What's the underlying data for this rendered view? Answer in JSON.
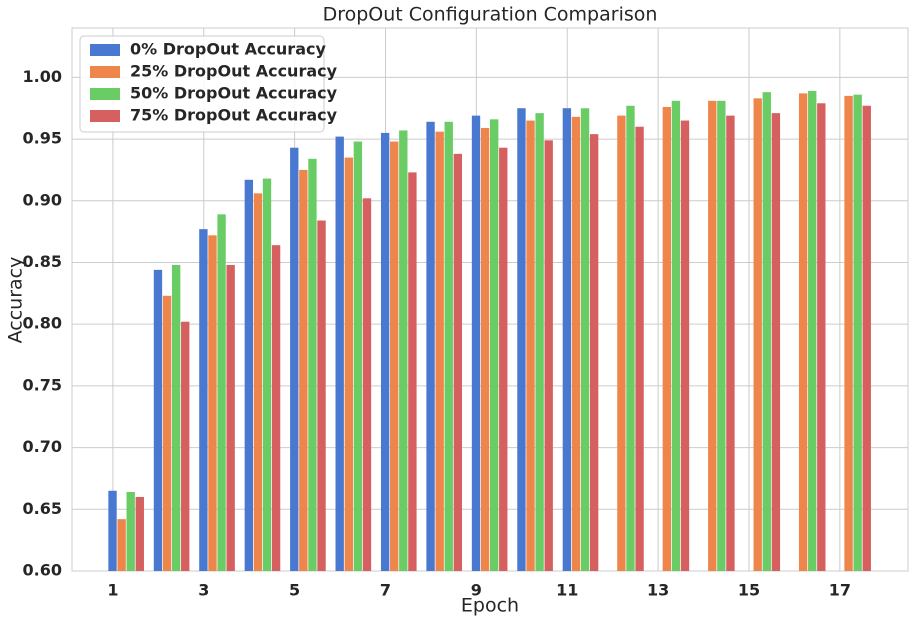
{
  "chart_data": {
    "type": "bar",
    "title": "DropOut Configuration Comparison",
    "x_label": "Epoch",
    "y_label": "Accuracy",
    "x": [
      1,
      2,
      3,
      4,
      5,
      6,
      7,
      8,
      9,
      10,
      11,
      12,
      13,
      14,
      15,
      16,
      17
    ],
    "series": [
      {
        "name": "0% DropOut Accuracy",
        "color": "#4878d0",
        "values": [
          0.665,
          0.844,
          0.877,
          0.917,
          0.943,
          0.952,
          0.955,
          0.964,
          0.969,
          0.975,
          0.975,
          null,
          null,
          null,
          null,
          null,
          null
        ]
      },
      {
        "name": "25% DropOut Accuracy",
        "color": "#ee854a",
        "values": [
          0.642,
          0.823,
          0.872,
          0.906,
          0.925,
          0.935,
          0.948,
          0.956,
          0.959,
          0.965,
          0.968,
          0.969,
          0.976,
          0.981,
          0.983,
          0.987,
          0.985
        ]
      },
      {
        "name": "50% DropOut Accuracy",
        "color": "#6acc64",
        "values": [
          0.664,
          0.848,
          0.889,
          0.918,
          0.934,
          0.948,
          0.957,
          0.964,
          0.966,
          0.971,
          0.975,
          0.977,
          0.981,
          0.981,
          0.988,
          0.989,
          0.986
        ]
      },
      {
        "name": "75% DropOut Accuracy",
        "color": "#d65f5f",
        "values": [
          0.66,
          0.802,
          0.848,
          0.864,
          0.884,
          0.902,
          0.923,
          0.938,
          0.943,
          0.949,
          0.954,
          0.96,
          0.965,
          0.969,
          0.971,
          0.979,
          0.977
        ]
      }
    ],
    "xlim": [
      0.1,
      18.5
    ],
    "xticks": [
      1,
      3,
      5,
      7,
      9,
      11,
      13,
      15,
      17
    ],
    "ylim": [
      0.6,
      1.04
    ],
    "yticks": [
      {
        "value": 0.6,
        "label": "0.60"
      },
      {
        "value": 0.65,
        "label": "0.65"
      },
      {
        "value": 0.7,
        "label": "0.70"
      },
      {
        "value": 0.75,
        "label": "0.75"
      },
      {
        "value": 0.8,
        "label": "0.80"
      },
      {
        "value": 0.85,
        "label": "0.85"
      },
      {
        "value": 0.9,
        "label": "0.90"
      },
      {
        "value": 0.95,
        "label": "0.95"
      },
      {
        "value": 1.0,
        "label": "1.00"
      }
    ],
    "grid": true,
    "legend": "upper left"
  }
}
